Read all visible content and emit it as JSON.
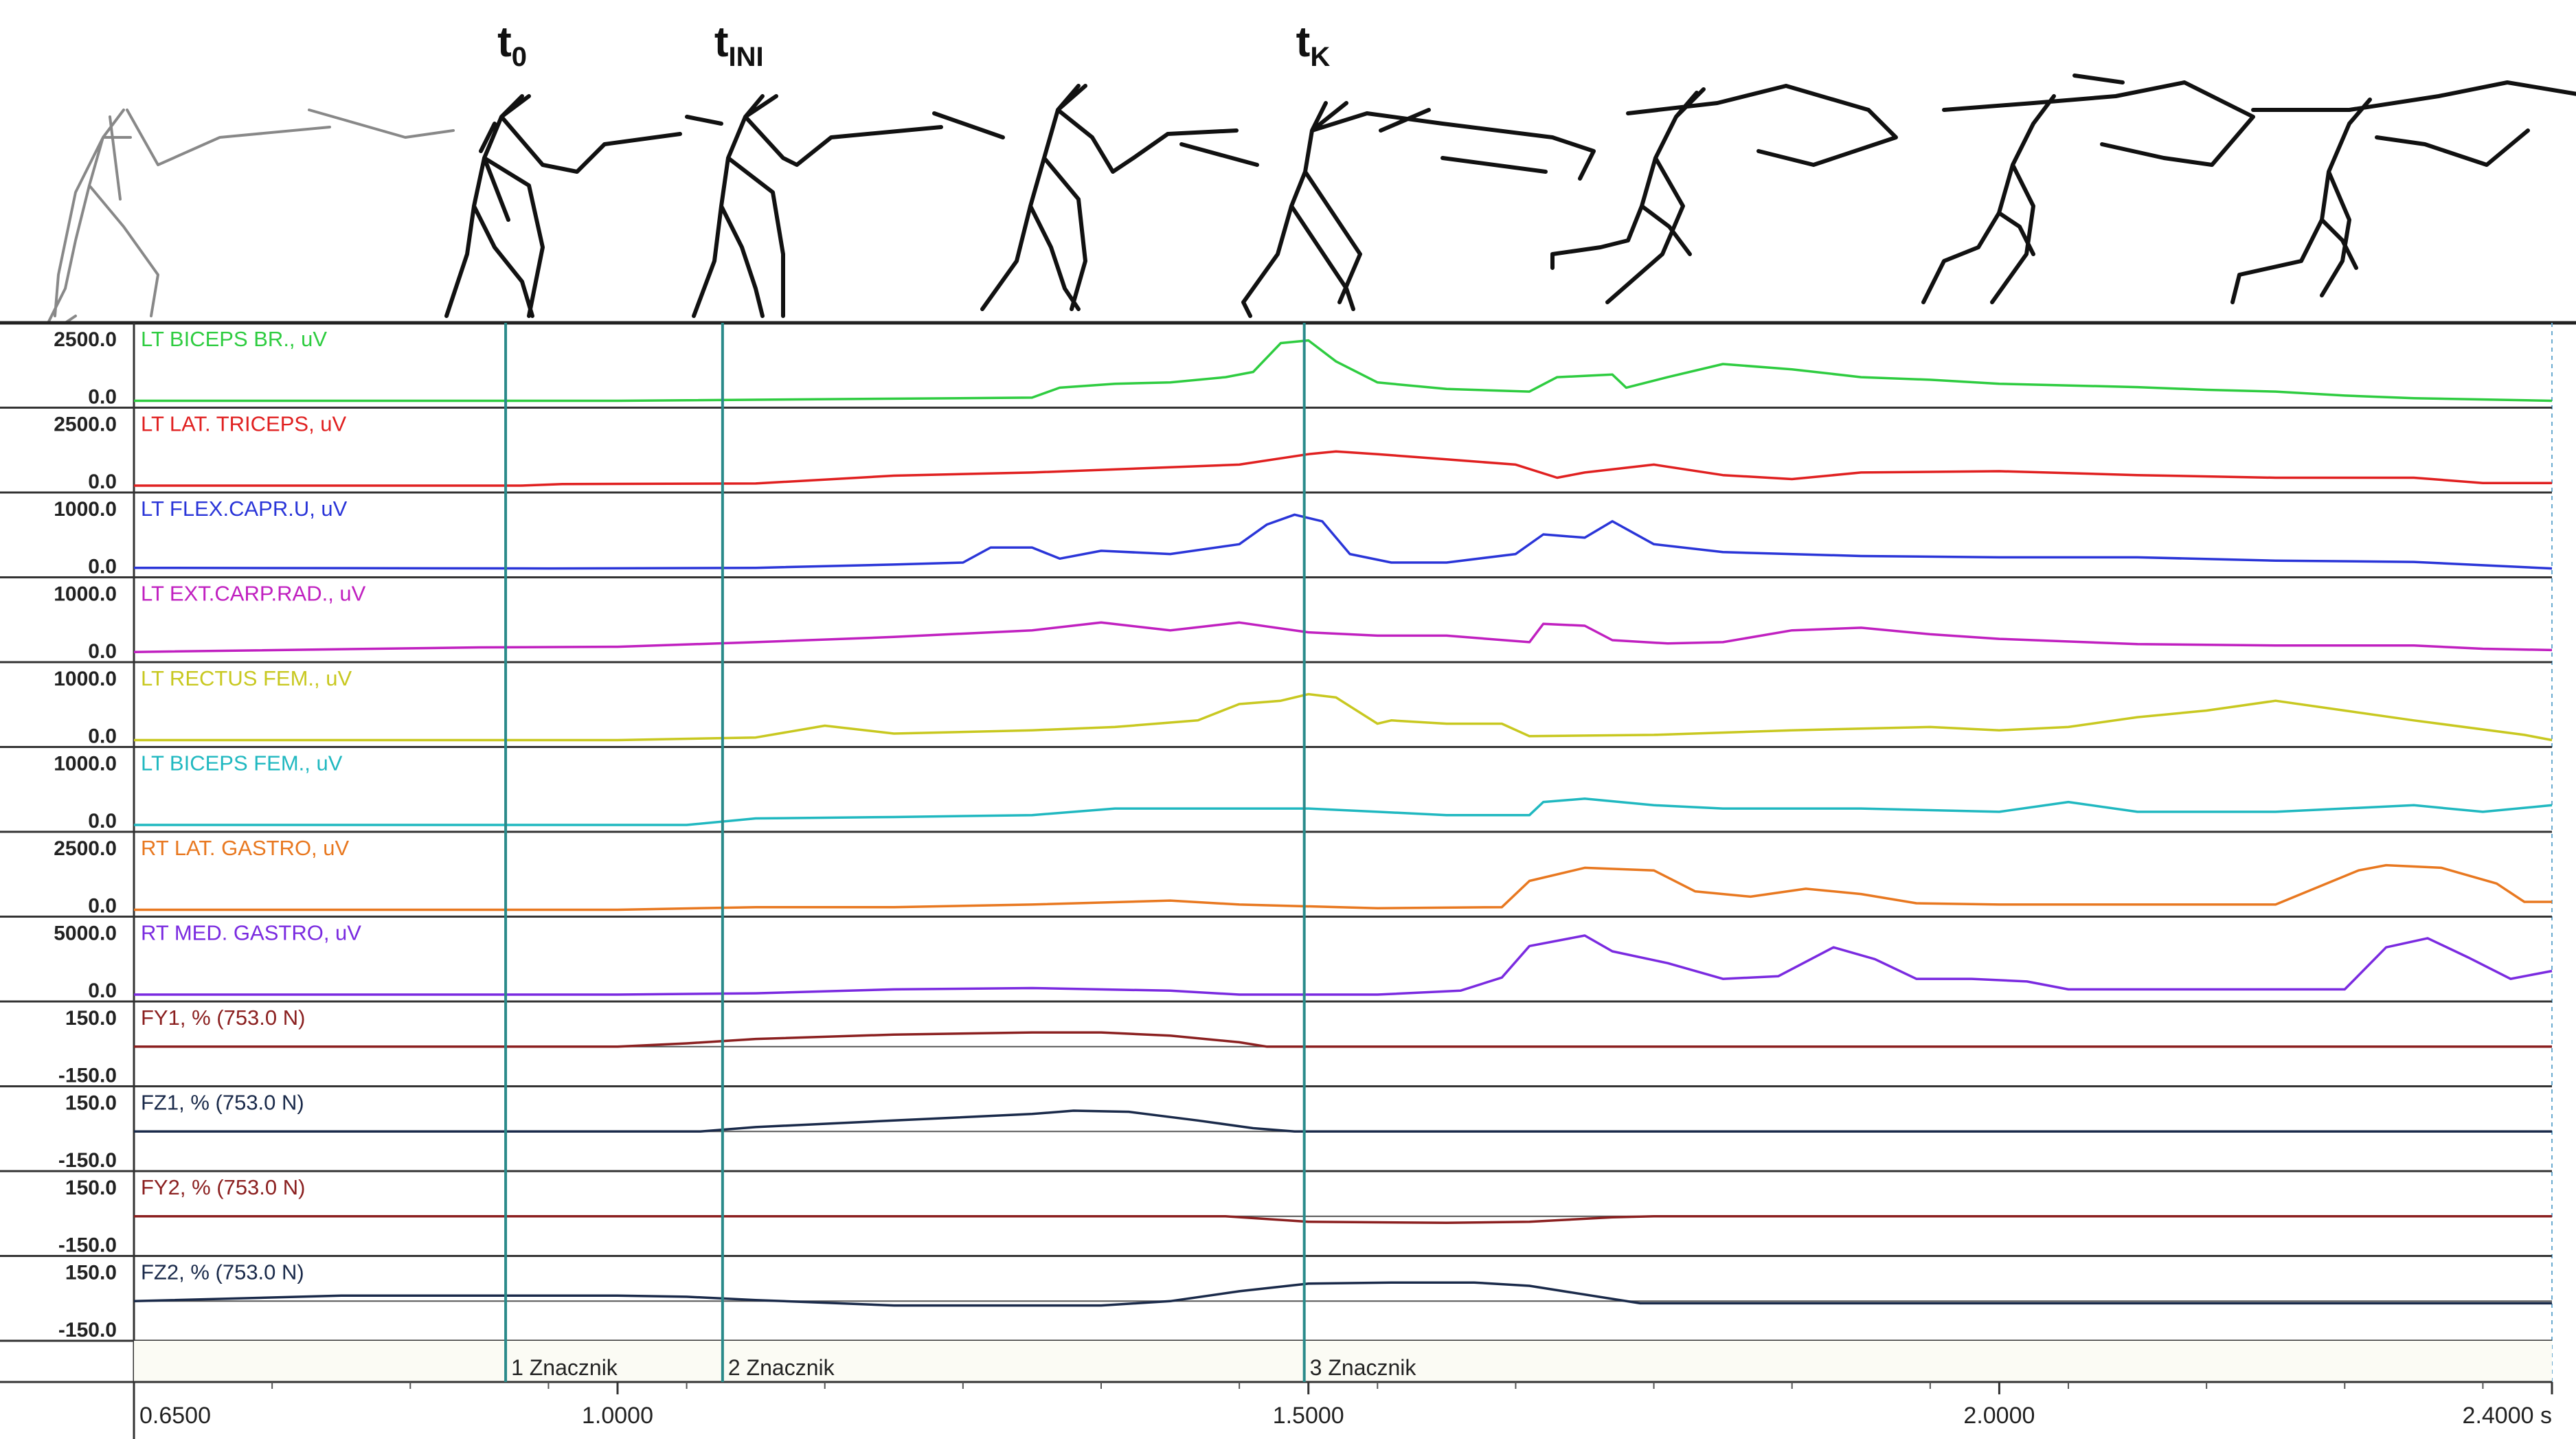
{
  "chart_data": {
    "type": "line",
    "title": "",
    "xlabel": "",
    "x_unit": "s",
    "xlim": [
      0.65,
      2.4
    ],
    "x_ticks": [
      {
        "value": 0.65,
        "label": "0.6500"
      },
      {
        "value": 1.0,
        "label": "1.0000"
      },
      {
        "value": 1.5,
        "label": "1.5000"
      },
      {
        "value": 2.0,
        "label": "2.0000"
      },
      {
        "value": 2.4,
        "label": "2.4000 s"
      }
    ],
    "phase_labels": [
      {
        "id": "t0",
        "base": "t",
        "sub": "0",
        "x": 0.919
      },
      {
        "id": "tini",
        "base": "t",
        "sub": "INI",
        "x": 1.076
      },
      {
        "id": "tk",
        "base": "t",
        "sub": "K",
        "x": 1.497
      }
    ],
    "markers": [
      {
        "x": 0.919,
        "label": "1 Znacznik"
      },
      {
        "x": 1.076,
        "label": "2 Znacznik"
      },
      {
        "x": 1.497,
        "label": "3 Znacznik"
      }
    ],
    "series": [
      {
        "name": "LT BICEPS BR., uV",
        "color": "#2ecc40",
        "ymax_label": "2500.0",
        "ymin_label": "0.0",
        "ylim": [
          0,
          2500
        ],
        "bipolar": false,
        "x": [
          0.65,
          1.0,
          1.3,
          1.32,
          1.36,
          1.4,
          1.44,
          1.46,
          1.48,
          1.5,
          1.52,
          1.55,
          1.6,
          1.66,
          1.68,
          1.72,
          1.73,
          1.76,
          1.8,
          1.85,
          1.9,
          1.95,
          2.0,
          2.1,
          2.15,
          2.2,
          2.25,
          2.3,
          2.4
        ],
        "y": [
          0,
          0,
          120,
          500,
          650,
          700,
          900,
          1100,
          2200,
          2300,
          1500,
          700,
          450,
          350,
          900,
          1000,
          500,
          900,
          1400,
          1200,
          900,
          800,
          650,
          520,
          420,
          350,
          200,
          100,
          0
        ]
      },
      {
        "name": "LT LAT. TRICEPS, uV",
        "color": "#e02020",
        "ymax_label": "2500.0",
        "ymin_label": "0.0",
        "ylim": [
          0,
          2500
        ],
        "bipolar": false,
        "x": [
          0.65,
          0.93,
          0.96,
          1.1,
          1.2,
          1.3,
          1.4,
          1.45,
          1.5,
          1.52,
          1.55,
          1.6,
          1.65,
          1.68,
          1.7,
          1.75,
          1.8,
          1.85,
          1.9,
          2.0,
          2.1,
          2.2,
          2.3,
          2.35,
          2.4
        ],
        "y": [
          0,
          0,
          60,
          80,
          380,
          500,
          700,
          800,
          1200,
          1300,
          1200,
          1000,
          800,
          300,
          500,
          800,
          400,
          250,
          500,
          550,
          400,
          300,
          300,
          100,
          100
        ]
      },
      {
        "name": "LT FLEX.CAPR.U, uV",
        "color": "#2a35d8",
        "ymax_label": "1000.0",
        "ymin_label": "0.0",
        "ylim": [
          0,
          1000
        ],
        "bipolar": false,
        "x": [
          0.65,
          0.95,
          1.1,
          1.2,
          1.25,
          1.27,
          1.3,
          1.32,
          1.35,
          1.4,
          1.45,
          1.47,
          1.49,
          1.51,
          1.53,
          1.56,
          1.6,
          1.65,
          1.67,
          1.7,
          1.72,
          1.75,
          1.8,
          1.9,
          2.0,
          2.1,
          2.2,
          2.3,
          2.35,
          2.4
        ],
        "y": [
          40,
          30,
          40,
          90,
          120,
          350,
          350,
          180,
          300,
          250,
          400,
          700,
          850,
          750,
          250,
          120,
          120,
          250,
          550,
          500,
          750,
          400,
          280,
          220,
          200,
          200,
          150,
          130,
          80,
          30
        ]
      },
      {
        "name": "LT EXT.CARP.RAD., uV",
        "color": "#c020c0",
        "ymax_label": "1000.0",
        "ymin_label": "0.0",
        "ylim": [
          0,
          1000
        ],
        "bipolar": false,
        "x": [
          0.65,
          0.9,
          1.0,
          1.1,
          1.2,
          1.3,
          1.35,
          1.4,
          1.45,
          1.5,
          1.55,
          1.6,
          1.66,
          1.67,
          1.7,
          1.72,
          1.76,
          1.8,
          1.85,
          1.9,
          1.95,
          2.0,
          2.1,
          2.2,
          2.3,
          2.35,
          2.4
        ],
        "y": [
          50,
          120,
          130,
          200,
          280,
          380,
          500,
          380,
          500,
          350,
          300,
          300,
          200,
          480,
          450,
          230,
          180,
          200,
          380,
          420,
          320,
          250,
          170,
          150,
          150,
          100,
          80
        ]
      },
      {
        "name": "LT RECTUS FEM., uV",
        "color": "#c8c820",
        "ymax_label": "1000.0",
        "ymin_label": "0.0",
        "ylim": [
          0,
          1000
        ],
        "bipolar": false,
        "x": [
          0.65,
          1.0,
          1.1,
          1.15,
          1.2,
          1.3,
          1.36,
          1.42,
          1.45,
          1.48,
          1.5,
          1.52,
          1.55,
          1.56,
          1.6,
          1.64,
          1.66,
          1.75,
          1.85,
          1.95,
          2.0,
          2.05,
          2.1,
          2.15,
          2.2,
          2.25,
          2.3,
          2.38,
          2.4
        ],
        "y": [
          0,
          0,
          40,
          220,
          100,
          150,
          200,
          300,
          550,
          600,
          700,
          650,
          250,
          300,
          250,
          250,
          60,
          80,
          150,
          200,
          150,
          200,
          350,
          450,
          600,
          450,
          300,
          80,
          0
        ]
      },
      {
        "name": "LT BICEPS FEM., uV",
        "color": "#20b8c0",
        "ymax_label": "1000.0",
        "ymin_label": "0.0",
        "ylim": [
          0,
          1000
        ],
        "bipolar": false,
        "x": [
          0.65,
          1.05,
          1.1,
          1.2,
          1.3,
          1.36,
          1.4,
          1.5,
          1.55,
          1.6,
          1.66,
          1.67,
          1.7,
          1.75,
          1.8,
          1.9,
          2.0,
          2.05,
          2.1,
          2.2,
          2.3,
          2.35,
          2.4
        ],
        "y": [
          0,
          0,
          100,
          120,
          150,
          250,
          250,
          250,
          200,
          150,
          150,
          350,
          400,
          300,
          250,
          250,
          200,
          350,
          200,
          200,
          300,
          200,
          300
        ]
      },
      {
        "name": "RT LAT. GASTRO, uV",
        "color": "#e87820",
        "ymax_label": "2500.0",
        "ymin_label": "0.0",
        "ylim": [
          0,
          2500
        ],
        "bipolar": false,
        "x": [
          0.65,
          1.0,
          1.1,
          1.2,
          1.3,
          1.4,
          1.45,
          1.55,
          1.64,
          1.66,
          1.7,
          1.75,
          1.78,
          1.82,
          1.86,
          1.9,
          1.94,
          2.0,
          2.1,
          2.2,
          2.26,
          2.28,
          2.32,
          2.36,
          2.38,
          2.4
        ],
        "y": [
          0,
          0,
          100,
          100,
          200,
          350,
          200,
          60,
          100,
          1100,
          1600,
          1500,
          700,
          500,
          800,
          600,
          250,
          200,
          200,
          200,
          1500,
          1700,
          1600,
          1000,
          300,
          300
        ]
      },
      {
        "name": "RT MED. GASTRO, uV",
        "color": "#7a2ae0",
        "ymax_label": "5000.0",
        "ymin_label": "0.0",
        "ylim": [
          0,
          5000
        ],
        "bipolar": false,
        "x": [
          0.65,
          1.0,
          1.1,
          1.2,
          1.3,
          1.4,
          1.45,
          1.55,
          1.61,
          1.64,
          1.66,
          1.7,
          1.72,
          1.76,
          1.8,
          1.84,
          1.88,
          1.91,
          1.94,
          1.98,
          2.02,
          2.05,
          2.1,
          2.2,
          2.25,
          2.28,
          2.31,
          2.34,
          2.37,
          2.4
        ],
        "y": [
          0,
          0,
          100,
          400,
          500,
          300,
          0,
          0,
          300,
          1300,
          3700,
          4500,
          3300,
          2400,
          1200,
          1400,
          3600,
          2700,
          1200,
          1200,
          1000,
          400,
          400,
          400,
          400,
          3600,
          4300,
          2800,
          1200,
          1800
        ]
      },
      {
        "name": "FY1, % (753.0 N)",
        "color": "#8b2020",
        "ymax_label": "150.0",
        "ymin_label": "-150.0",
        "ylim": [
          -150,
          150
        ],
        "bipolar": true,
        "x": [
          0.65,
          0.9,
          1.0,
          1.05,
          1.1,
          1.2,
          1.3,
          1.35,
          1.4,
          1.45,
          1.47,
          1.5,
          2.4
        ],
        "y": [
          0,
          0,
          0,
          15,
          35,
          55,
          65,
          65,
          50,
          20,
          0,
          0,
          0
        ]
      },
      {
        "name": "FZ1, % (753.0 N)",
        "color": "#1a2a4a",
        "ymax_label": "150.0",
        "ymin_label": "-150.0",
        "ylim": [
          -150,
          150
        ],
        "bipolar": true,
        "x": [
          0.65,
          1.0,
          1.06,
          1.1,
          1.2,
          1.3,
          1.33,
          1.37,
          1.42,
          1.46,
          1.49,
          1.5,
          2.4
        ],
        "y": [
          0,
          0,
          0,
          20,
          50,
          80,
          95,
          90,
          50,
          15,
          0,
          0,
          0
        ]
      },
      {
        "name": "FY2, % (753.0 N)",
        "color": "#8b2020",
        "ymax_label": "150.0",
        "ymin_label": "-150.0",
        "ylim": [
          -150,
          150
        ],
        "bipolar": true,
        "x": [
          0.65,
          1.0,
          1.1,
          1.3,
          1.44,
          1.5,
          1.6,
          1.66,
          1.72,
          1.75,
          1.8,
          2.4
        ],
        "y": [
          0,
          0,
          0,
          0,
          0,
          -25,
          -30,
          -25,
          -5,
          0,
          0,
          0
        ]
      },
      {
        "name": "FZ2, % (753.0 N)",
        "color": "#1a2a4a",
        "ymax_label": "150.0",
        "ymin_label": "-150.0",
        "ylim": [
          -150,
          150
        ],
        "bipolar": true,
        "x": [
          0.65,
          0.8,
          1.0,
          1.05,
          1.1,
          1.2,
          1.35,
          1.4,
          1.45,
          1.5,
          1.56,
          1.62,
          1.66,
          1.74,
          1.9,
          2.4
        ],
        "y": [
          0,
          25,
          25,
          20,
          5,
          -20,
          -20,
          0,
          45,
          80,
          85,
          85,
          70,
          -10,
          -10,
          -10
        ]
      }
    ]
  }
}
